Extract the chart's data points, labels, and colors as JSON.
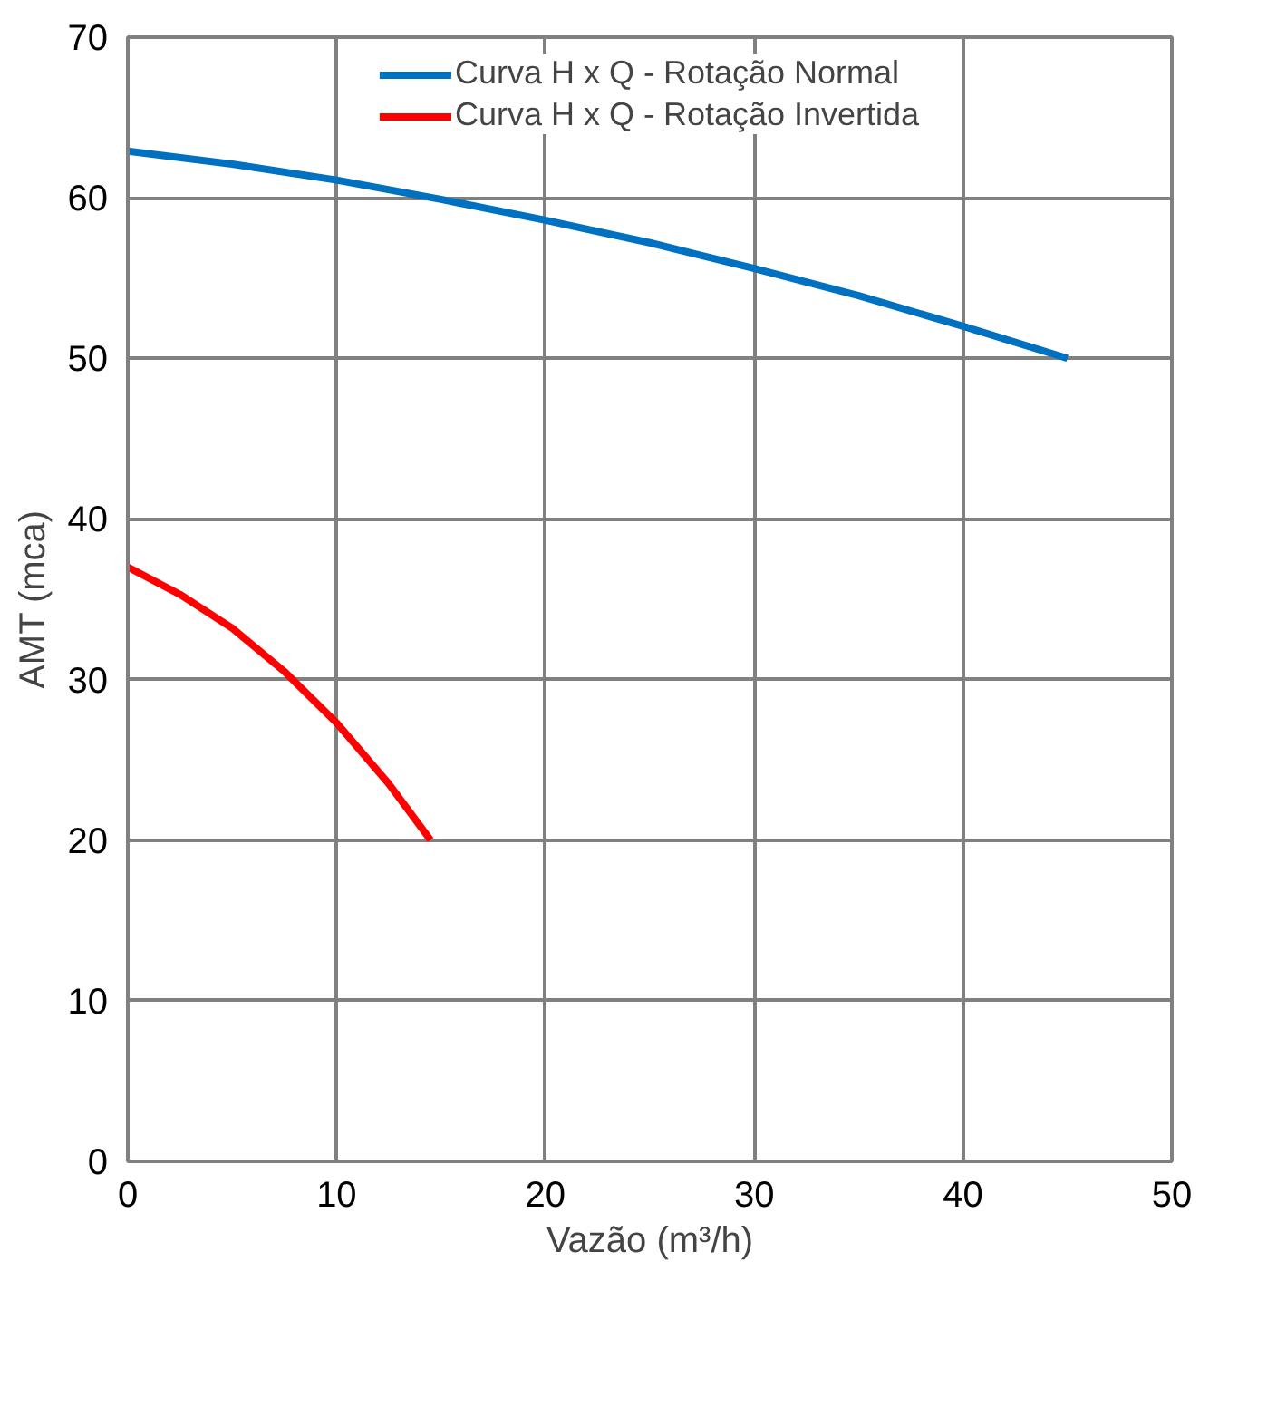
{
  "chart_data": {
    "type": "line",
    "xlabel": "Vazão (m³/h)",
    "ylabel": "AMT (mca)",
    "xlim": [
      0,
      50
    ],
    "xticks": [
      0,
      10,
      20,
      30,
      40,
      50
    ],
    "ylim": [
      0,
      70
    ],
    "yticks": [
      0,
      10,
      20,
      30,
      40,
      50,
      60,
      70
    ],
    "grid": true,
    "legend": "top",
    "marker": "none",
    "line_style": "solid",
    "series": [
      {
        "name": "Curva H x Q - Rotação Normal",
        "color": "#0070c0",
        "x": [
          0,
          5,
          10,
          15,
          20,
          25,
          30,
          35,
          40,
          45
        ],
        "values": [
          62.9,
          62.1,
          61.1,
          59.9,
          58.6,
          57.2,
          55.6,
          53.9,
          52.0,
          50.0
        ]
      },
      {
        "name": "Curva H x Q - Rotação Invertida",
        "color": "#ff0000",
        "x": [
          0,
          2.5,
          5,
          7.5,
          10,
          12.5,
          14.5
        ],
        "values": [
          37,
          35.3,
          33.2,
          30.5,
          27.3,
          23.5,
          20
        ]
      }
    ]
  }
}
